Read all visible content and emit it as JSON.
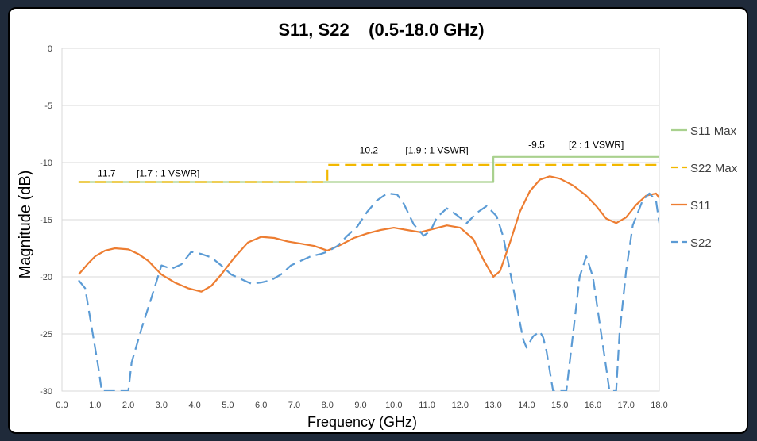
{
  "chart_data": {
    "type": "line",
    "title": "S11, S22    (0.5-18.0 GHz)",
    "xlabel": "Frequency (GHz)",
    "ylabel": "Magnitude (dB)",
    "xlim": [
      0,
      18
    ],
    "ylim": [
      -30,
      0
    ],
    "grid": "horizontal",
    "legend_position": "right",
    "x_ticks": [
      "0.0",
      "1.0",
      "2.0",
      "3.0",
      "4.0",
      "5.0",
      "6.0",
      "7.0",
      "8.0",
      "9.0",
      "10.0",
      "11.0",
      "12.0",
      "13.0",
      "14.0",
      "15.0",
      "16.0",
      "17.0",
      "18.0"
    ],
    "y_ticks": [
      "0",
      "-5",
      "-10",
      "-15",
      "-20",
      "-25",
      "-30"
    ],
    "series": [
      {
        "name": "S11 Max",
        "color": "#a9d18e",
        "dash": "solid",
        "points": [
          [
            0.5,
            -11.7
          ],
          [
            8.0,
            -11.7
          ],
          [
            8.0,
            -11.7
          ],
          [
            13.0,
            -11.7
          ],
          [
            13.0,
            -9.5
          ],
          [
            18.0,
            -9.5
          ]
        ]
      },
      {
        "name": "S22 Max",
        "color": "#f2b800",
        "dash": "dashed",
        "points": [
          [
            0.5,
            -11.7
          ],
          [
            8.0,
            -11.7
          ],
          [
            8.0,
            -10.2
          ],
          [
            18.0,
            -10.2
          ]
        ]
      },
      {
        "name": "S11",
        "color": "#ed7d31",
        "dash": "solid",
        "points": [
          [
            0.5,
            -19.8
          ],
          [
            0.8,
            -18.8
          ],
          [
            1.0,
            -18.2
          ],
          [
            1.3,
            -17.7
          ],
          [
            1.6,
            -17.5
          ],
          [
            2.0,
            -17.6
          ],
          [
            2.3,
            -18.0
          ],
          [
            2.6,
            -18.6
          ],
          [
            3.0,
            -19.8
          ],
          [
            3.4,
            -20.5
          ],
          [
            3.8,
            -21.0
          ],
          [
            4.2,
            -21.3
          ],
          [
            4.5,
            -20.8
          ],
          [
            4.8,
            -19.8
          ],
          [
            5.2,
            -18.3
          ],
          [
            5.6,
            -17.0
          ],
          [
            6.0,
            -16.5
          ],
          [
            6.4,
            -16.6
          ],
          [
            6.8,
            -16.9
          ],
          [
            7.2,
            -17.1
          ],
          [
            7.6,
            -17.3
          ],
          [
            8.0,
            -17.7
          ],
          [
            8.4,
            -17.2
          ],
          [
            8.8,
            -16.6
          ],
          [
            9.2,
            -16.2
          ],
          [
            9.6,
            -15.9
          ],
          [
            10.0,
            -15.7
          ],
          [
            10.4,
            -15.9
          ],
          [
            10.8,
            -16.1
          ],
          [
            11.2,
            -15.8
          ],
          [
            11.6,
            -15.5
          ],
          [
            12.0,
            -15.7
          ],
          [
            12.4,
            -16.7
          ],
          [
            12.7,
            -18.5
          ],
          [
            13.0,
            -20.0
          ],
          [
            13.2,
            -19.5
          ],
          [
            13.5,
            -17.0
          ],
          [
            13.8,
            -14.3
          ],
          [
            14.1,
            -12.5
          ],
          [
            14.4,
            -11.5
          ],
          [
            14.7,
            -11.2
          ],
          [
            15.0,
            -11.4
          ],
          [
            15.4,
            -12.0
          ],
          [
            15.8,
            -12.9
          ],
          [
            16.1,
            -13.8
          ],
          [
            16.4,
            -14.9
          ],
          [
            16.7,
            -15.3
          ],
          [
            17.0,
            -14.8
          ],
          [
            17.3,
            -13.7
          ],
          [
            17.6,
            -12.9
          ],
          [
            17.9,
            -12.7
          ],
          [
            18.0,
            -13.1
          ]
        ]
      },
      {
        "name": "S22",
        "color": "#5b9bd5",
        "dash": "dashed",
        "points": [
          [
            0.5,
            -20.3
          ],
          [
            0.7,
            -21.0
          ],
          [
            0.9,
            -24.5
          ],
          [
            1.1,
            -28.0
          ],
          [
            1.2,
            -30.0
          ],
          [
            2.0,
            -30.0
          ],
          [
            2.1,
            -27.5
          ],
          [
            2.4,
            -24.5
          ],
          [
            2.7,
            -21.8
          ],
          [
            3.0,
            -19.0
          ],
          [
            3.3,
            -19.3
          ],
          [
            3.6,
            -18.9
          ],
          [
            3.9,
            -17.8
          ],
          [
            4.2,
            -18.0
          ],
          [
            4.5,
            -18.3
          ],
          [
            4.8,
            -19.0
          ],
          [
            5.1,
            -19.8
          ],
          [
            5.4,
            -20.2
          ],
          [
            5.7,
            -20.6
          ],
          [
            6.0,
            -20.5
          ],
          [
            6.3,
            -20.3
          ],
          [
            6.6,
            -19.8
          ],
          [
            6.9,
            -19.0
          ],
          [
            7.2,
            -18.6
          ],
          [
            7.5,
            -18.2
          ],
          [
            7.8,
            -18.0
          ],
          [
            8.0,
            -17.8
          ],
          [
            8.3,
            -17.3
          ],
          [
            8.6,
            -16.4
          ],
          [
            8.9,
            -15.6
          ],
          [
            9.2,
            -14.3
          ],
          [
            9.5,
            -13.3
          ],
          [
            9.8,
            -12.7
          ],
          [
            10.1,
            -12.8
          ],
          [
            10.3,
            -13.6
          ],
          [
            10.6,
            -15.4
          ],
          [
            10.9,
            -16.4
          ],
          [
            11.1,
            -16.0
          ],
          [
            11.3,
            -14.8
          ],
          [
            11.6,
            -14.0
          ],
          [
            11.9,
            -14.6
          ],
          [
            12.2,
            -15.3
          ],
          [
            12.5,
            -14.4
          ],
          [
            12.8,
            -13.8
          ],
          [
            13.1,
            -14.7
          ],
          [
            13.3,
            -16.5
          ],
          [
            13.5,
            -19.5
          ],
          [
            13.7,
            -22.5
          ],
          [
            13.9,
            -25.5
          ],
          [
            14.0,
            -26.2
          ],
          [
            14.2,
            -25.2
          ],
          [
            14.4,
            -24.8
          ],
          [
            14.5,
            -25.3
          ],
          [
            14.6,
            -26.5
          ],
          [
            14.8,
            -30.0
          ],
          [
            15.2,
            -30.0
          ],
          [
            15.4,
            -25.0
          ],
          [
            15.6,
            -20.0
          ],
          [
            15.8,
            -18.2
          ],
          [
            16.0,
            -20.0
          ],
          [
            16.2,
            -24.0
          ],
          [
            16.4,
            -28.0
          ],
          [
            16.5,
            -30.0
          ],
          [
            16.7,
            -30.0
          ],
          [
            16.8,
            -25.0
          ],
          [
            17.0,
            -19.5
          ],
          [
            17.2,
            -15.5
          ],
          [
            17.5,
            -13.3
          ],
          [
            17.7,
            -12.7
          ],
          [
            17.9,
            -13.3
          ],
          [
            18.0,
            -15.3
          ]
        ]
      }
    ],
    "annotations": [
      {
        "text": "-11.7",
        "x": 1.3,
        "y": -11.2
      },
      {
        "text": "[1.7 : 1 VSWR]",
        "x": 3.2,
        "y": -11.2
      },
      {
        "text": "-10.2",
        "x": 9.2,
        "y": -9.2
      },
      {
        "text": "[1.9 : 1 VSWR]",
        "x": 11.3,
        "y": -9.2
      },
      {
        "text": "-9.5",
        "x": 14.3,
        "y": -8.7
      },
      {
        "text": "[2 : 1 VSWR]",
        "x": 16.1,
        "y": -8.7
      }
    ]
  }
}
